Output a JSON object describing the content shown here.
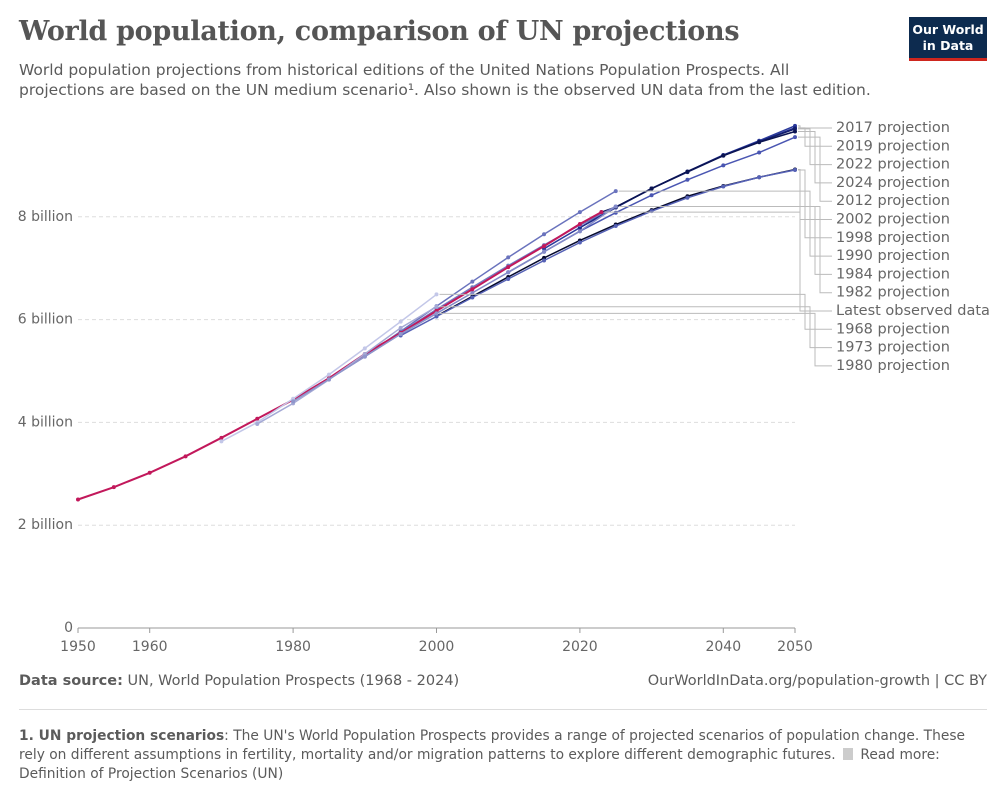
{
  "logo": "Our World in Data",
  "chart_data": {
    "type": "line",
    "title": "World population, comparison of UN projections",
    "subtitle": "World population projections from historical editions of the United Nations Population Prospects. All projections are based on the UN medium scenario¹. Also shown is the observed UN data from the last edition.",
    "xlim": [
      1950,
      2050
    ],
    "xticks": [
      1950,
      1960,
      1980,
      2000,
      2020,
      2040,
      2050
    ],
    "ylim": [
      0,
      10
    ],
    "yticks": [
      0,
      {
        "value": 2,
        "label": "2 billion"
      },
      {
        "value": 4,
        "label": "4 billion"
      },
      {
        "value": 6,
        "label": "6 billion"
      },
      {
        "value": 8,
        "label": "8 billion"
      }
    ],
    "grid": true,
    "series": [
      {
        "name": "2017 projection",
        "color": "#2b3a9c",
        "x": [
          2015,
          2020,
          2025,
          2030,
          2035,
          2040,
          2045,
          2050
        ],
        "values": [
          7.38,
          7.79,
          8.18,
          8.55,
          8.88,
          9.2,
          9.48,
          9.77
        ]
      },
      {
        "name": "2019 projection",
        "color": "#1d2b8a",
        "x": [
          2020,
          2025,
          2030,
          2035,
          2040,
          2045,
          2050
        ],
        "values": [
          7.79,
          8.18,
          8.55,
          8.88,
          9.2,
          9.46,
          9.73
        ]
      },
      {
        "name": "2022 projection",
        "color": "#121d6c",
        "x": [
          2020,
          2025,
          2030,
          2035,
          2040,
          2045,
          2050
        ],
        "values": [
          7.84,
          8.19,
          8.55,
          8.87,
          9.19,
          9.46,
          9.71
        ]
      },
      {
        "name": "2024 projection",
        "color": "#0b1452",
        "x": [
          2023,
          2025,
          2030,
          2035,
          2040,
          2045,
          2050
        ],
        "values": [
          8.09,
          8.19,
          8.55,
          8.88,
          9.19,
          9.45,
          9.66
        ]
      },
      {
        "name": "2012 projection",
        "color": "#4a56b2",
        "x": [
          2010,
          2015,
          2020,
          2025,
          2030,
          2035,
          2040,
          2045,
          2050
        ],
        "values": [
          6.92,
          7.32,
          7.72,
          8.08,
          8.42,
          8.72,
          9.0,
          9.25,
          9.55
        ]
      },
      {
        "name": "2002 projection",
        "color": "#060a2e",
        "x": [
          2000,
          2005,
          2010,
          2015,
          2020,
          2025,
          2030,
          2035,
          2040,
          2045,
          2050
        ],
        "values": [
          6.07,
          6.45,
          6.83,
          7.2,
          7.54,
          7.85,
          8.13,
          8.4,
          8.6,
          8.77,
          8.92
        ]
      },
      {
        "name": "1998 projection",
        "color": "#5662b6",
        "x": [
          1995,
          2000,
          2005,
          2010,
          2015,
          2020,
          2025,
          2030,
          2035,
          2040,
          2045,
          2050
        ],
        "values": [
          5.69,
          6.06,
          6.43,
          6.79,
          7.15,
          7.5,
          7.82,
          8.11,
          8.37,
          8.59,
          8.77,
          8.91
        ]
      },
      {
        "name": "1990 projection",
        "color": "#6a73bd",
        "x": [
          1990,
          1995,
          2000,
          2005,
          2010,
          2015,
          2020,
          2025
        ],
        "values": [
          5.29,
          5.77,
          6.26,
          6.74,
          7.21,
          7.66,
          8.09,
          8.5
        ]
      },
      {
        "name": "1984 projection",
        "color": "#727bc0",
        "x": [
          1985,
          1990,
          1995,
          2000,
          2005,
          2010,
          2015,
          2020,
          2025
        ],
        "values": [
          4.85,
          5.29,
          5.75,
          6.2,
          6.63,
          7.05,
          7.45,
          7.84,
          8.2
        ]
      },
      {
        "name": "1982 projection",
        "color": "#838ac8",
        "x": [
          1980,
          1985,
          1990,
          1995,
          2000,
          2005,
          2010,
          2015,
          2020,
          2025
        ],
        "values": [
          4.42,
          4.84,
          5.28,
          5.72,
          6.12,
          6.52,
          6.92,
          7.32,
          7.72,
          8.2
        ]
      },
      {
        "name": "Latest observed data",
        "color": "#c2185b",
        "x": [
          1950,
          1955,
          1960,
          1965,
          1970,
          1975,
          1980,
          1985,
          1990,
          1995,
          2000,
          2005,
          2010,
          2015,
          2020,
          2023
        ],
        "values": [
          2.5,
          2.74,
          3.02,
          3.34,
          3.7,
          4.07,
          4.44,
          4.86,
          5.33,
          5.74,
          6.17,
          6.59,
          7.02,
          7.43,
          7.86,
          8.09
        ]
      },
      {
        "name": "1968 projection",
        "color": "#c3c7e8",
        "x": [
          1970,
          1975,
          1980,
          1985,
          1990,
          1995,
          2000
        ],
        "values": [
          3.63,
          4.0,
          4.46,
          4.93,
          5.44,
          5.96,
          6.49
        ]
      },
      {
        "name": "1973 projection",
        "color": "#a4a9d5",
        "x": [
          1975,
          1980,
          1985,
          1990,
          1995,
          2000
        ],
        "values": [
          3.97,
          4.37,
          4.83,
          5.33,
          5.84,
          6.25
        ]
      },
      {
        "name": "1980 projection",
        "color": "#8f95cb",
        "x": [
          1980,
          1985,
          1990,
          1995,
          2000
        ],
        "values": [
          4.41,
          4.84,
          5.28,
          5.72,
          6.12
        ]
      }
    ]
  },
  "source": {
    "label": "Data source:",
    "text": "UN, World Population Prospects (1968 - 2024)"
  },
  "url": "OurWorldInData.org/population-growth | CC BY",
  "footnote": {
    "title": "1. UN projection scenarios",
    "text": ": The UN's World Population Prospects provides a range of projected scenarios of population change. These rely on different assumptions in fertility, mortality and/or migration patterns to explore different demographic futures.",
    "link": "Read more: Definition of Projection Scenarios (UN)"
  }
}
